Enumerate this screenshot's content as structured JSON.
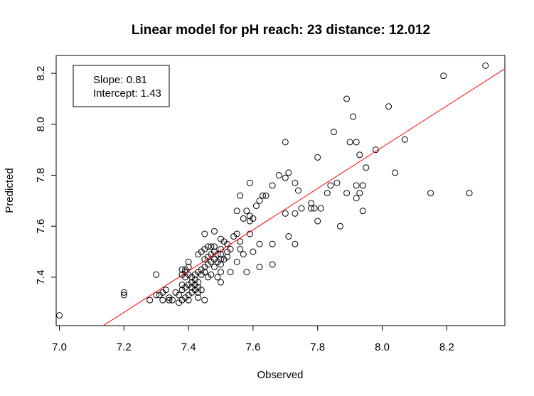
{
  "chart_data": {
    "type": "scatter",
    "title": "Linear model for pH  reach: 23  distance: 12.012",
    "xlabel": "Observed",
    "ylabel": "Predicted",
    "xlim": [
      6.99,
      8.38
    ],
    "ylim": [
      7.21,
      8.27
    ],
    "xticks": [
      7.0,
      7.2,
      7.4,
      7.6,
      7.8,
      8.0,
      8.2
    ],
    "xtick_labels": [
      "7.0",
      "7.2",
      "7.4",
      "7.6",
      "7.8",
      "8.0",
      "8.2"
    ],
    "yticks": [
      7.4,
      7.6,
      7.8,
      8.0,
      8.2
    ],
    "ytick_labels": [
      "7.4",
      "7.6",
      "7.8",
      "8.0",
      "8.2"
    ],
    "legend": {
      "position": "top-left",
      "slope_label": "Slope: 0.81",
      "intercept_label": "Intercept: 1.43"
    },
    "regression_line": {
      "slope": 0.81,
      "intercept": 1.43,
      "color": "#ff0000"
    },
    "point_color": "#000000",
    "points": [
      [
        7.0,
        7.25
      ],
      [
        7.2,
        7.33
      ],
      [
        7.2,
        7.34
      ],
      [
        7.28,
        7.31
      ],
      [
        7.3,
        7.33
      ],
      [
        7.3,
        7.41
      ],
      [
        7.31,
        7.33
      ],
      [
        7.32,
        7.31
      ],
      [
        7.32,
        7.34
      ],
      [
        7.33,
        7.35
      ],
      [
        7.34,
        7.31
      ],
      [
        7.34,
        7.32
      ],
      [
        7.35,
        7.31
      ],
      [
        7.36,
        7.34
      ],
      [
        7.37,
        7.3
      ],
      [
        7.37,
        7.33
      ],
      [
        7.38,
        7.31
      ],
      [
        7.38,
        7.35
      ],
      [
        7.38,
        7.37
      ],
      [
        7.38,
        7.41
      ],
      [
        7.38,
        7.43
      ],
      [
        7.39,
        7.32
      ],
      [
        7.39,
        7.36
      ],
      [
        7.39,
        7.4
      ],
      [
        7.39,
        7.42
      ],
      [
        7.39,
        7.43
      ],
      [
        7.4,
        7.31
      ],
      [
        7.4,
        7.33
      ],
      [
        7.4,
        7.37
      ],
      [
        7.4,
        7.41
      ],
      [
        7.4,
        7.44
      ],
      [
        7.4,
        7.46
      ],
      [
        7.41,
        7.34
      ],
      [
        7.41,
        7.36
      ],
      [
        7.41,
        7.38
      ],
      [
        7.41,
        7.4
      ],
      [
        7.42,
        7.35
      ],
      [
        7.42,
        7.37
      ],
      [
        7.42,
        7.39
      ],
      [
        7.42,
        7.41
      ],
      [
        7.43,
        7.32
      ],
      [
        7.43,
        7.34
      ],
      [
        7.43,
        7.36
      ],
      [
        7.43,
        7.38
      ],
      [
        7.43,
        7.42
      ],
      [
        7.43,
        7.49
      ],
      [
        7.44,
        7.35
      ],
      [
        7.44,
        7.41
      ],
      [
        7.44,
        7.43
      ],
      [
        7.44,
        7.5
      ],
      [
        7.45,
        7.31
      ],
      [
        7.45,
        7.42
      ],
      [
        7.45,
        7.44
      ],
      [
        7.45,
        7.47
      ],
      [
        7.45,
        7.51
      ],
      [
        7.45,
        7.57
      ],
      [
        7.46,
        7.4
      ],
      [
        7.46,
        7.45
      ],
      [
        7.46,
        7.48
      ],
      [
        7.46,
        7.52
      ],
      [
        7.47,
        7.41
      ],
      [
        7.47,
        7.46
      ],
      [
        7.47,
        7.49
      ],
      [
        7.47,
        7.52
      ],
      [
        7.48,
        7.44
      ],
      [
        7.48,
        7.47
      ],
      [
        7.48,
        7.5
      ],
      [
        7.48,
        7.52
      ],
      [
        7.48,
        7.58
      ],
      [
        7.49,
        7.4
      ],
      [
        7.49,
        7.46
      ],
      [
        7.49,
        7.49
      ],
      [
        7.5,
        7.38
      ],
      [
        7.5,
        7.42
      ],
      [
        7.5,
        7.45
      ],
      [
        7.5,
        7.47
      ],
      [
        7.5,
        7.49
      ],
      [
        7.5,
        7.51
      ],
      [
        7.5,
        7.55
      ],
      [
        7.51,
        7.47
      ],
      [
        7.51,
        7.54
      ],
      [
        7.52,
        7.48
      ],
      [
        7.52,
        7.5
      ],
      [
        7.52,
        7.53
      ],
      [
        7.53,
        7.42
      ],
      [
        7.53,
        7.51
      ],
      [
        7.54,
        7.56
      ],
      [
        7.55,
        7.46
      ],
      [
        7.55,
        7.57
      ],
      [
        7.55,
        7.66
      ],
      [
        7.56,
        7.51
      ],
      [
        7.56,
        7.54
      ],
      [
        7.56,
        7.72
      ],
      [
        7.57,
        7.49
      ],
      [
        7.57,
        7.63
      ],
      [
        7.58,
        7.42
      ],
      [
        7.58,
        7.66
      ],
      [
        7.59,
        7.57
      ],
      [
        7.59,
        7.62
      ],
      [
        7.59,
        7.64
      ],
      [
        7.59,
        7.77
      ],
      [
        7.6,
        7.5
      ],
      [
        7.6,
        7.63
      ],
      [
        7.61,
        7.68
      ],
      [
        7.62,
        7.44
      ],
      [
        7.62,
        7.53
      ],
      [
        7.62,
        7.7
      ],
      [
        7.63,
        7.72
      ],
      [
        7.64,
        7.72
      ],
      [
        7.66,
        7.45
      ],
      [
        7.66,
        7.53
      ],
      [
        7.66,
        7.76
      ],
      [
        7.68,
        7.8
      ],
      [
        7.7,
        7.65
      ],
      [
        7.7,
        7.79
      ],
      [
        7.7,
        7.93
      ],
      [
        7.71,
        7.56
      ],
      [
        7.71,
        7.81
      ],
      [
        7.73,
        7.53
      ],
      [
        7.73,
        7.65
      ],
      [
        7.73,
        7.77
      ],
      [
        7.74,
        7.74
      ],
      [
        7.75,
        7.67
      ],
      [
        7.78,
        7.67
      ],
      [
        7.78,
        7.69
      ],
      [
        7.79,
        7.67
      ],
      [
        7.8,
        7.62
      ],
      [
        7.8,
        7.87
      ],
      [
        7.81,
        7.67
      ],
      [
        7.83,
        7.73
      ],
      [
        7.84,
        7.76
      ],
      [
        7.85,
        7.97
      ],
      [
        7.86,
        7.77
      ],
      [
        7.87,
        7.6
      ],
      [
        7.89,
        7.73
      ],
      [
        7.89,
        8.1
      ],
      [
        7.9,
        7.93
      ],
      [
        7.91,
        8.03
      ],
      [
        7.92,
        7.71
      ],
      [
        7.92,
        7.76
      ],
      [
        7.92,
        7.93
      ],
      [
        7.93,
        7.73
      ],
      [
        7.93,
        7.88
      ],
      [
        7.94,
        7.66
      ],
      [
        7.94,
        7.76
      ],
      [
        7.95,
        7.83
      ],
      [
        7.98,
        7.9
      ],
      [
        8.02,
        8.07
      ],
      [
        8.04,
        7.81
      ],
      [
        8.07,
        7.94
      ],
      [
        8.15,
        7.73
      ],
      [
        8.19,
        8.19
      ],
      [
        8.27,
        7.73
      ],
      [
        8.32,
        8.23
      ]
    ]
  }
}
